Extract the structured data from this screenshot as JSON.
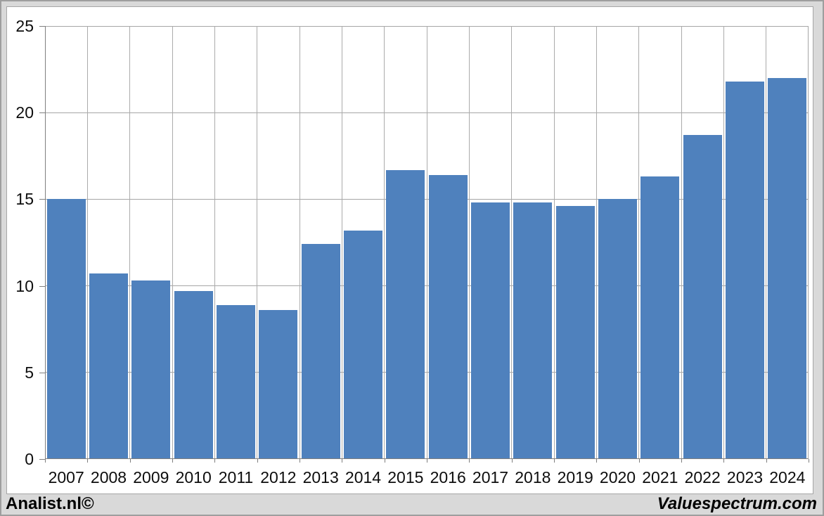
{
  "chart_data": {
    "type": "bar",
    "title": "",
    "xlabel": "",
    "ylabel": "",
    "categories": [
      "2007",
      "2008",
      "2009",
      "2010",
      "2011",
      "2012",
      "2013",
      "2014",
      "2015",
      "2016",
      "2017",
      "2018",
      "2019",
      "2020",
      "2021",
      "2022",
      "2023",
      "2024"
    ],
    "values": [
      15.0,
      10.7,
      10.3,
      9.7,
      8.9,
      8.6,
      12.4,
      13.2,
      16.7,
      16.4,
      14.8,
      14.8,
      14.6,
      15.0,
      16.3,
      18.7,
      21.8,
      22.0
    ],
    "ylim": [
      0,
      25
    ],
    "y_ticks": [
      0,
      5,
      10,
      15,
      20,
      25
    ],
    "grid": true,
    "legend": "none",
    "bar_color": "#4f81bd",
    "plot_background": "#ffffff",
    "gridline_color": "#a6a6a6",
    "axis_color": "#7f7f7f",
    "outer_background": "#d9d9d9"
  },
  "footer": {
    "left": "Analist.nl©",
    "right": "Valuespectrum.com"
  }
}
